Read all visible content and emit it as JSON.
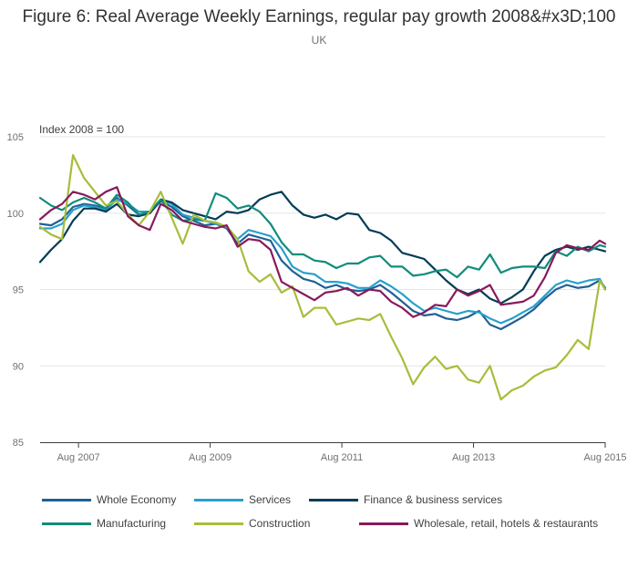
{
  "chart_data": {
    "type": "line",
    "title": "Figure 6: Real Average Weekly Earnings, regular pay growth 2008&#x3D;100",
    "subtitle": "UK",
    "ylabel": "Index 2008 = 100",
    "xlabel": "",
    "ylim": [
      85,
      105
    ],
    "yticks": [
      85,
      90,
      95,
      100,
      105
    ],
    "x_start": "Jan 2007",
    "x_end": "Aug 2015",
    "xlim_months": [
      0,
      103
    ],
    "xtick_labels": [
      "Aug 2007",
      "Aug 2009",
      "Aug 2011",
      "Aug 2013",
      "Aug 2015"
    ],
    "xtick_months": [
      7,
      31,
      55,
      79,
      103
    ],
    "grid": true,
    "series": [
      {
        "name": "Whole Economy",
        "color": "#206095",
        "x": [
          0,
          2,
          4,
          6,
          8,
          10,
          12,
          14,
          16,
          18,
          20,
          22,
          24,
          26,
          28,
          30,
          32,
          34,
          36,
          38,
          40,
          42,
          44,
          46,
          48,
          50,
          52,
          54,
          56,
          58,
          60,
          62,
          64,
          66,
          68,
          70,
          72,
          74,
          76,
          78,
          80,
          82,
          84,
          86,
          88,
          90,
          92,
          94,
          96,
          98,
          100,
          102,
          103
        ],
        "values": [
          99.3,
          99.2,
          99.6,
          100.4,
          100.6,
          100.5,
          100.3,
          101.0,
          100.5,
          99.9,
          100.0,
          100.8,
          100.4,
          99.8,
          99.5,
          99.2,
          99.3,
          99.0,
          98.0,
          98.6,
          98.4,
          98.2,
          96.9,
          96.2,
          95.7,
          95.5,
          95.1,
          95.3,
          95.0,
          94.9,
          95.0,
          95.3,
          94.8,
          94.2,
          93.6,
          93.3,
          93.4,
          93.1,
          93.0,
          93.2,
          93.6,
          92.7,
          92.4,
          92.8,
          93.2,
          93.7,
          94.4,
          95.0,
          95.3,
          95.1,
          95.2,
          95.6,
          95.1
        ]
      },
      {
        "name": "Services",
        "color": "#27a0cc",
        "x": [
          0,
          2,
          4,
          6,
          8,
          10,
          12,
          14,
          16,
          18,
          20,
          22,
          24,
          26,
          28,
          30,
          32,
          34,
          36,
          38,
          40,
          42,
          44,
          46,
          48,
          50,
          52,
          54,
          56,
          58,
          60,
          62,
          64,
          66,
          68,
          70,
          72,
          74,
          76,
          78,
          80,
          82,
          84,
          86,
          88,
          90,
          92,
          94,
          96,
          98,
          100,
          102,
          103
        ],
        "values": [
          99.0,
          99.0,
          99.3,
          100.2,
          100.5,
          100.4,
          100.2,
          100.9,
          100.6,
          100.1,
          100.1,
          100.9,
          100.6,
          99.9,
          99.7,
          99.5,
          99.3,
          99.1,
          98.3,
          98.9,
          98.7,
          98.5,
          97.7,
          96.5,
          96.1,
          96.0,
          95.5,
          95.5,
          95.4,
          95.1,
          95.1,
          95.6,
          95.2,
          94.7,
          94.1,
          93.6,
          93.8,
          93.6,
          93.4,
          93.6,
          93.5,
          93.1,
          92.8,
          93.1,
          93.5,
          93.9,
          94.6,
          95.3,
          95.6,
          95.4,
          95.6,
          95.7,
          95.0
        ]
      },
      {
        "name": "Finance & business services",
        "color": "#003c57",
        "x": [
          0,
          2,
          4,
          6,
          8,
          10,
          12,
          14,
          16,
          18,
          20,
          22,
          24,
          26,
          28,
          30,
          32,
          34,
          36,
          38,
          40,
          42,
          44,
          46,
          48,
          50,
          52,
          54,
          56,
          58,
          60,
          62,
          64,
          66,
          68,
          70,
          72,
          74,
          76,
          78,
          80,
          82,
          84,
          86,
          88,
          90,
          92,
          94,
          96,
          98,
          100,
          102,
          103
        ],
        "values": [
          96.8,
          97.6,
          98.3,
          99.5,
          100.3,
          100.3,
          100.1,
          100.6,
          99.9,
          99.8,
          100.0,
          100.9,
          100.7,
          100.2,
          100.0,
          99.8,
          99.6,
          100.1,
          100.0,
          100.2,
          100.9,
          101.2,
          101.4,
          100.5,
          99.9,
          99.7,
          99.9,
          99.6,
          100.0,
          99.9,
          98.9,
          98.7,
          98.2,
          97.4,
          97.2,
          97.0,
          96.3,
          95.6,
          95.0,
          94.7,
          95.0,
          94.4,
          94.1,
          94.5,
          95.0,
          96.2,
          97.2,
          97.6,
          97.8,
          97.6,
          97.8,
          97.6,
          97.5
        ]
      },
      {
        "name": "Manufacturing",
        "color": "#118c7b",
        "x": [
          0,
          2,
          4,
          6,
          8,
          10,
          12,
          14,
          16,
          18,
          20,
          22,
          24,
          26,
          28,
          30,
          32,
          34,
          36,
          38,
          40,
          42,
          44,
          46,
          48,
          50,
          52,
          54,
          56,
          58,
          60,
          62,
          64,
          66,
          68,
          70,
          72,
          74,
          76,
          78,
          80,
          82,
          84,
          86,
          88,
          90,
          92,
          94,
          96,
          98,
          100,
          102,
          103
        ],
        "values": [
          101.0,
          100.5,
          100.2,
          100.7,
          101.0,
          100.7,
          100.3,
          101.2,
          100.7,
          99.9,
          100.1,
          100.9,
          99.9,
          99.5,
          99.6,
          99.5,
          101.3,
          101.0,
          100.3,
          100.5,
          100.1,
          99.3,
          98.1,
          97.3,
          97.3,
          96.9,
          96.8,
          96.4,
          96.7,
          96.7,
          97.1,
          97.2,
          96.5,
          96.5,
          95.9,
          96.0,
          96.2,
          96.3,
          95.8,
          96.5,
          96.3,
          97.3,
          96.1,
          96.4,
          96.5,
          96.5,
          96.4,
          97.5,
          97.2,
          97.8,
          97.5,
          97.9,
          97.8
        ]
      },
      {
        "name": "Construction",
        "color": "#a8bd3a",
        "x": [
          0,
          2,
          4,
          6,
          8,
          10,
          12,
          14,
          16,
          18,
          20,
          22,
          24,
          26,
          28,
          30,
          32,
          34,
          36,
          38,
          40,
          42,
          44,
          46,
          48,
          50,
          52,
          54,
          56,
          58,
          60,
          62,
          64,
          66,
          68,
          70,
          72,
          74,
          76,
          78,
          80,
          82,
          84,
          86,
          88,
          90,
          92,
          94,
          96,
          98,
          100,
          102,
          103
        ],
        "values": [
          99.1,
          98.6,
          98.3,
          103.8,
          102.3,
          101.4,
          100.5,
          100.8,
          99.9,
          99.2,
          100.1,
          101.4,
          99.7,
          98.0,
          99.9,
          99.5,
          99.4,
          99.1,
          98.3,
          96.2,
          95.5,
          96.0,
          94.8,
          95.2,
          93.2,
          93.8,
          93.8,
          92.7,
          92.9,
          93.1,
          93.0,
          93.4,
          91.9,
          90.5,
          88.8,
          89.9,
          90.6,
          89.8,
          90.0,
          89.1,
          88.9,
          90.0,
          87.8,
          88.4,
          88.7,
          89.3,
          89.7,
          89.9,
          90.7,
          91.7,
          91.1,
          95.6,
          95.0
        ]
      },
      {
        "name": "Wholesale, retail, hotels & restaurants",
        "color": "#871a5b",
        "x": [
          0,
          2,
          4,
          6,
          8,
          10,
          12,
          14,
          16,
          18,
          20,
          22,
          24,
          26,
          28,
          30,
          32,
          34,
          36,
          38,
          40,
          42,
          44,
          46,
          48,
          50,
          52,
          54,
          56,
          58,
          60,
          62,
          64,
          66,
          68,
          70,
          72,
          74,
          76,
          78,
          80,
          82,
          84,
          86,
          88,
          90,
          92,
          94,
          96,
          98,
          100,
          102,
          103
        ],
        "values": [
          99.6,
          100.2,
          100.6,
          101.4,
          101.2,
          100.9,
          101.4,
          101.7,
          99.8,
          99.2,
          98.9,
          100.6,
          100.2,
          99.5,
          99.3,
          99.1,
          99.0,
          99.2,
          97.8,
          98.3,
          98.2,
          97.6,
          95.5,
          95.1,
          94.7,
          94.3,
          94.8,
          94.9,
          95.1,
          94.6,
          95.0,
          94.9,
          94.2,
          93.8,
          93.2,
          93.5,
          94.0,
          93.9,
          95.0,
          94.6,
          94.9,
          95.3,
          94.0,
          94.1,
          94.2,
          94.6,
          95.8,
          97.4,
          97.9,
          97.7,
          97.6,
          98.2,
          98.0
        ]
      }
    ]
  }
}
